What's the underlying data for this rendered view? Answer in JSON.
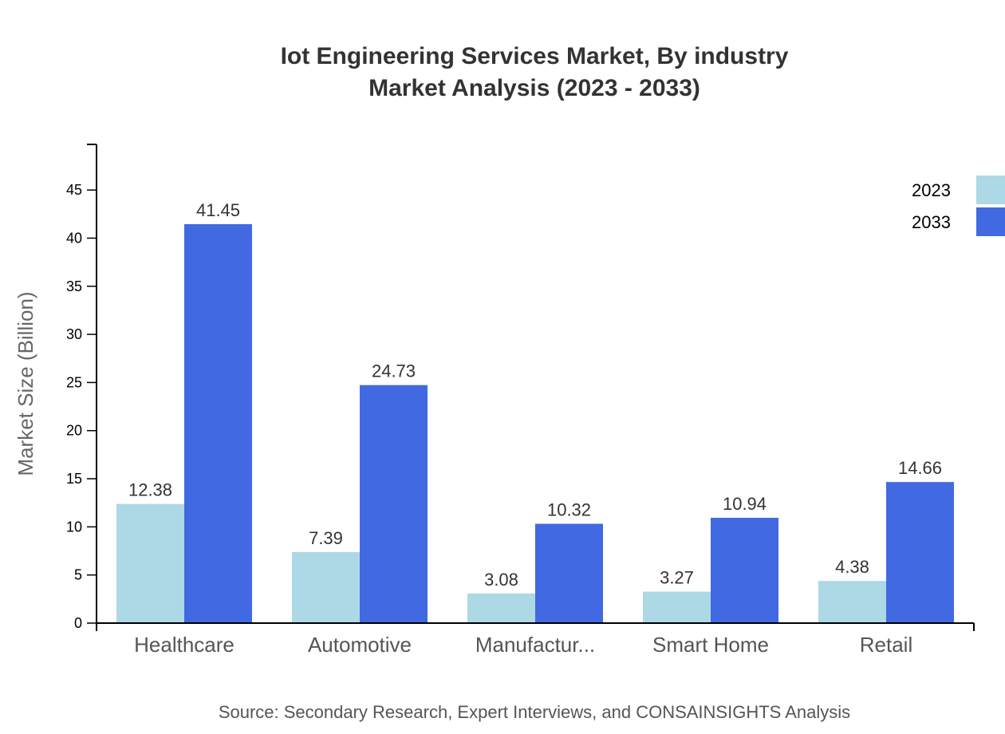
{
  "chart_data": {
    "type": "bar",
    "title": [
      "Iot Engineering Services Market, By industry",
      "Market Analysis (2023 - 2033)"
    ],
    "xlabel": "",
    "ylabel": "Market Size (Billion)",
    "categories": [
      "Healthcare",
      "Automotive",
      "Manufactur...",
      "Smart Home",
      "Retail"
    ],
    "series": [
      {
        "name": "2023",
        "color": "#ADD8E6",
        "values": [
          12.38,
          7.39,
          3.08,
          3.27,
          4.38
        ]
      },
      {
        "name": "2033",
        "color": "#4169E1",
        "values": [
          41.45,
          24.73,
          10.32,
          10.94,
          14.66
        ]
      }
    ],
    "ylim": [
      0,
      49.74
    ],
    "yticks": [
      0,
      5,
      10,
      15,
      20,
      25,
      30,
      35,
      40,
      45
    ],
    "grid": false,
    "legend": "top-right",
    "source": "Source: Secondary Research, Expert Interviews, and CONSAINSIGHTS Analysis"
  }
}
